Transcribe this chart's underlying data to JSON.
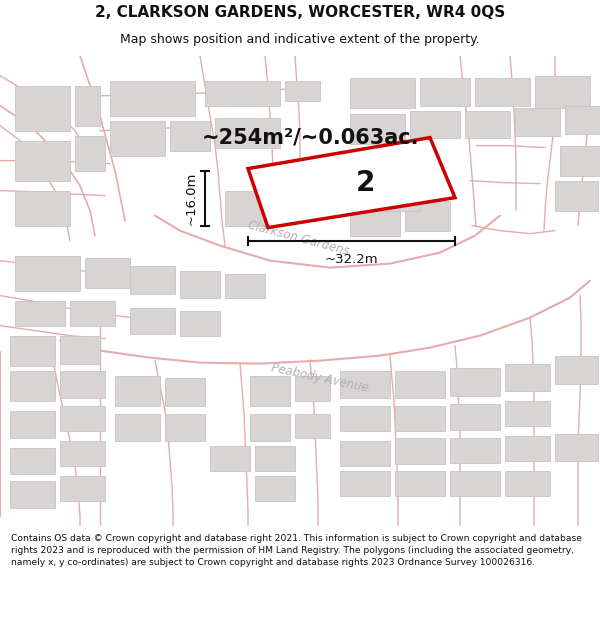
{
  "title": "2, CLARKSON GARDENS, WORCESTER, WR4 0QS",
  "subtitle": "Map shows position and indicative extent of the property.",
  "area_text": "~254m²/~0.063ac.",
  "width_label": "~32.2m",
  "height_label": "~16.0m",
  "property_number": "2",
  "footer": "Contains OS data © Crown copyright and database right 2021. This information is subject to Crown copyright and database rights 2023 and is reproduced with the permission of HM Land Registry. The polygons (including the associated geometry, namely x, y co-ordinates) are subject to Crown copyright and database rights 2023 Ordnance Survey 100026316.",
  "map_bg": "#f7f4f4",
  "road_color": "#e8aaaa",
  "building_fill": "#d8d4d4",
  "building_edge": "#c8c4c4",
  "property_fill": "#ffffff",
  "property_edge": "#cc0000",
  "text_color": "#111111",
  "street_label_color": "#b0b0b0",
  "header_bg": "#ffffff",
  "footer_bg": "#ffffff",
  "dim_color": "#111111"
}
